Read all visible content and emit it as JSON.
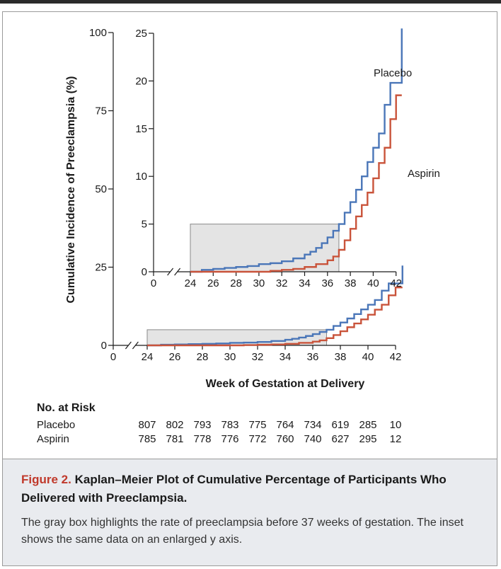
{
  "chart_data": {
    "type": "line",
    "title": "",
    "xlabel": "Week of Gestation at Delivery",
    "ylabel": "Cumulative Incidence of Preeclampsia (%)",
    "main": {
      "xlim": [
        0,
        42
      ],
      "ylim": [
        0,
        100
      ],
      "x_ticks": [
        0,
        24,
        26,
        28,
        30,
        32,
        34,
        36,
        38,
        40,
        42
      ],
      "y_ticks": [
        0,
        25,
        50,
        75,
        100
      ],
      "highlight_box": {
        "x": [
          24,
          37
        ],
        "y": [
          0,
          5
        ]
      }
    },
    "inset": {
      "xlim": [
        0,
        42
      ],
      "ylim": [
        0,
        25
      ],
      "x_ticks": [
        0,
        24,
        26,
        28,
        30,
        32,
        34,
        36,
        38,
        40,
        42
      ],
      "y_ticks": [
        0,
        5,
        10,
        15,
        20,
        25
      ],
      "highlight_box": {
        "x": [
          24,
          37
        ],
        "y": [
          0,
          5
        ]
      }
    },
    "series": [
      {
        "name": "Placebo",
        "color": "#4a76b8",
        "x": [
          24,
          25,
          26,
          27,
          28,
          29,
          30,
          31,
          32,
          33,
          34,
          34.5,
          35,
          35.5,
          36,
          36.5,
          37,
          37.5,
          38,
          38.5,
          39,
          39.5,
          40,
          40.5,
          41,
          41.5,
          42,
          42.5
        ],
        "y": [
          0,
          0.2,
          0.3,
          0.4,
          0.5,
          0.6,
          0.8,
          0.9,
          1.1,
          1.4,
          1.8,
          2.1,
          2.5,
          3.0,
          3.6,
          4.3,
          5.0,
          6.2,
          7.3,
          8.6,
          10.0,
          11.5,
          13.0,
          14.5,
          17.5,
          19.8,
          19.8,
          25.5
        ]
      },
      {
        "name": "Aspirin",
        "color": "#c9533a",
        "x": [
          24,
          26,
          28,
          30,
          31,
          32,
          33,
          34,
          35,
          36,
          36.5,
          37,
          37.5,
          38,
          38.5,
          39,
          39.5,
          40,
          40.5,
          41,
          41.5,
          42,
          42.5
        ],
        "y": [
          0,
          0,
          0,
          0,
          0.1,
          0.2,
          0.3,
          0.5,
          0.8,
          1.2,
          1.6,
          2.3,
          3.3,
          4.5,
          5.8,
          7.0,
          8.3,
          9.8,
          11.4,
          13.0,
          16.0,
          18.5,
          18.5
        ]
      }
    ]
  },
  "risk_table": {
    "title": "No. at Risk",
    "weeks": [
      24,
      26,
      28,
      30,
      32,
      34,
      36,
      38,
      40,
      42
    ],
    "rows": [
      {
        "label": "Placebo",
        "values": [
          "807",
          "802",
          "793",
          "783",
          "775",
          "764",
          "734",
          "619",
          "285",
          "10"
        ]
      },
      {
        "label": "Aspirin",
        "values": [
          "785",
          "781",
          "778",
          "776",
          "772",
          "760",
          "740",
          "627",
          "295",
          "12"
        ]
      }
    ]
  },
  "caption": {
    "figure_label": "Figure 2.",
    "title": "Kaplan–Meier Plot of Cumulative Percentage of Participants Who Delivered with Preeclampsia.",
    "text": "The gray box highlights the rate of preeclampsia before 37 weeks of gestation. The inset shows the same data on an enlarged y axis."
  }
}
